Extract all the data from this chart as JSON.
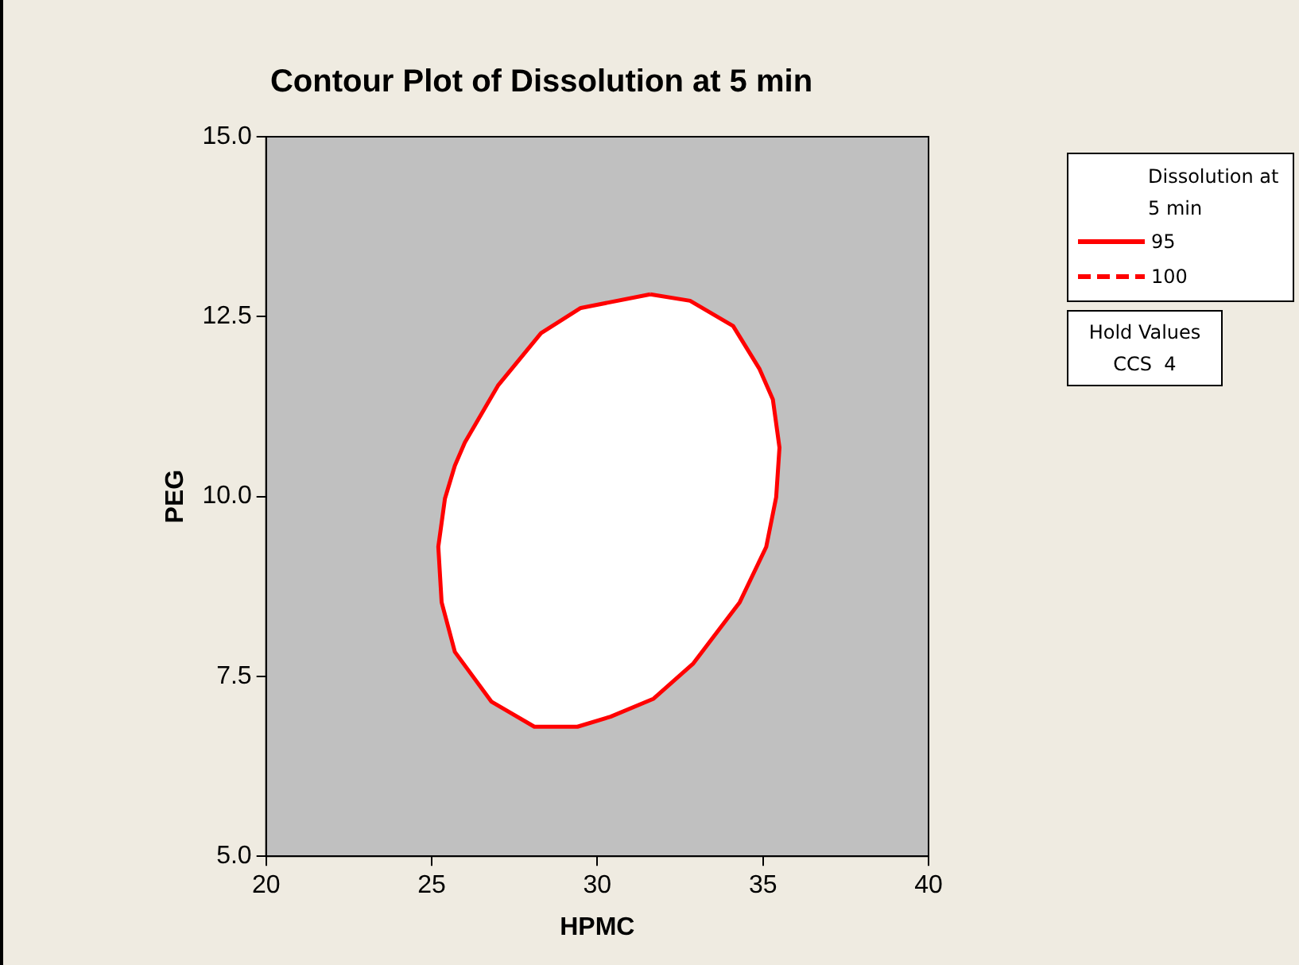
{
  "chart_data": {
    "type": "area",
    "title": "Contour Plot of Dissolution at 5 min",
    "xlabel": "HPMC",
    "ylabel": "PEG",
    "legend_title": "Dissolution at 5 min",
    "legend": "right",
    "grid": false,
    "marker": "none",
    "xlim": [
      20,
      40
    ],
    "xticks": [
      20,
      25,
      30,
      35,
      40
    ],
    "ylim": [
      5,
      15
    ],
    "yticks": [
      {
        "value": 5,
        "label": "5.0"
      },
      {
        "value": 7.5,
        "label": "7.5"
      },
      {
        "value": 10,
        "label": "10.0"
      },
      {
        "value": 12.5,
        "label": "12.5"
      },
      {
        "value": 15,
        "label": "15.0"
      }
    ],
    "series": [
      {
        "name": "95",
        "color": "#ff0000",
        "line_style": "solid",
        "x": [
          31.6,
          32.8,
          34.1,
          34.9,
          35.3,
          35.5,
          35.4,
          35.1,
          34.3,
          32.9,
          31.7,
          30.4,
          29.4,
          28.1,
          26.8,
          25.7,
          25.3,
          25.2,
          25.4,
          25.7,
          26.0,
          27.0,
          28.3,
          29.5,
          31.6
        ],
        "values": [
          12.81,
          12.72,
          12.37,
          11.77,
          11.35,
          10.68,
          9.99,
          9.3,
          8.53,
          7.68,
          7.19,
          6.94,
          6.8,
          6.8,
          7.15,
          7.84,
          8.53,
          9.3,
          9.97,
          10.43,
          10.75,
          11.54,
          12.27,
          12.62,
          12.81
        ]
      },
      {
        "name": "100",
        "color": "#ff0000",
        "line_style": "dashed"
      }
    ],
    "annotations": [
      "Hold Values",
      "CCS  4"
    ]
  }
}
